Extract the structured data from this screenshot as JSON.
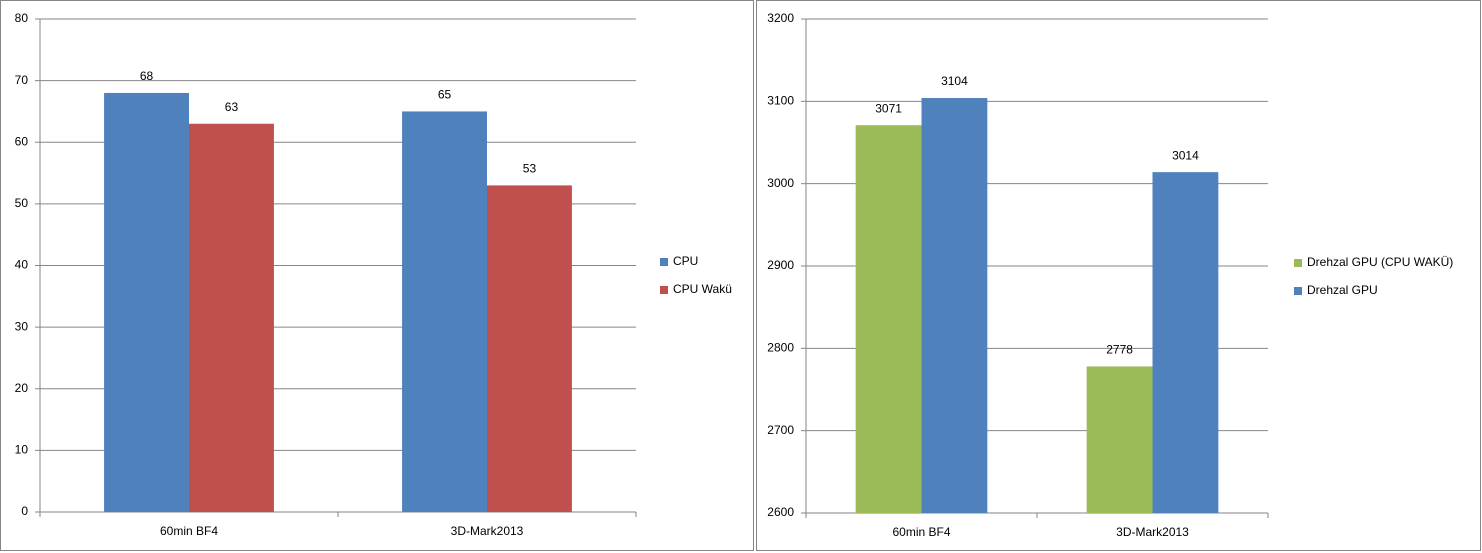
{
  "chart_data": [
    {
      "type": "bar",
      "categories": [
        "60min BF4",
        "3D-Mark2013"
      ],
      "series": [
        {
          "name": "CPU",
          "color": "#4f81bd",
          "values": [
            68,
            65
          ]
        },
        {
          "name": "CPU Wakü",
          "color": "#c0504d",
          "values": [
            63,
            53
          ]
        }
      ],
      "ylim": [
        0,
        80
      ],
      "yticks": [
        0,
        10,
        20,
        30,
        40,
        50,
        60,
        70,
        80
      ],
      "grid": true,
      "legend": "right",
      "data_labels": true
    },
    {
      "type": "bar",
      "categories": [
        "60min BF4",
        "3D-Mark2013"
      ],
      "series": [
        {
          "name": "Drehzal GPU (CPU WAKÜ)",
          "color": "#9bbb59",
          "values": [
            3071,
            2778
          ]
        },
        {
          "name": "Drehzal GPU",
          "color": "#4f81bd",
          "values": [
            3104,
            3014
          ]
        }
      ],
      "ylim": [
        2600,
        3200
      ],
      "yticks": [
        2600,
        2700,
        2800,
        2900,
        3000,
        3100,
        3200
      ],
      "grid": true,
      "legend": "right",
      "data_labels": true
    }
  ]
}
